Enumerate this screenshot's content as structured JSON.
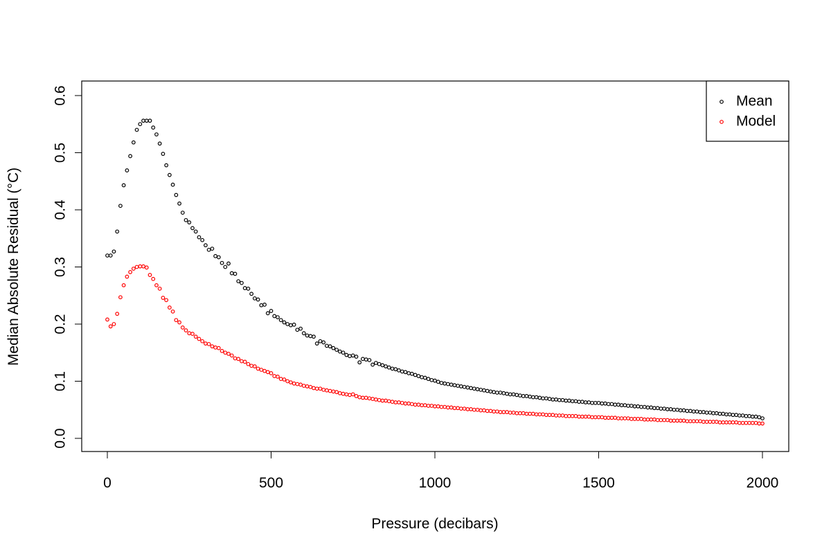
{
  "chart_data": {
    "type": "scatter",
    "x_label": "Pressure (decibars)",
    "y_label": "Median Absolute Residual (°C)",
    "x": [
      0,
      10,
      20,
      30,
      40,
      50,
      60,
      70,
      80,
      90,
      100,
      110,
      120,
      130,
      140,
      150,
      160,
      170,
      180,
      190,
      200,
      210,
      220,
      230,
      240,
      250,
      260,
      270,
      280,
      290,
      300,
      310,
      320,
      330,
      340,
      350,
      360,
      370,
      380,
      390,
      400,
      410,
      420,
      430,
      440,
      450,
      460,
      470,
      480,
      490,
      500,
      510,
      520,
      530,
      540,
      550,
      560,
      570,
      580,
      590,
      600,
      610,
      620,
      630,
      640,
      650,
      660,
      670,
      680,
      690,
      700,
      710,
      720,
      730,
      740,
      750,
      760,
      770,
      780,
      790,
      800,
      810,
      820,
      830,
      840,
      850,
      860,
      870,
      880,
      890,
      900,
      910,
      920,
      930,
      940,
      950,
      960,
      970,
      980,
      990,
      1000,
      1010,
      1020,
      1030,
      1040,
      1050,
      1060,
      1070,
      1080,
      1090,
      1100,
      1110,
      1120,
      1130,
      1140,
      1150,
      1160,
      1170,
      1180,
      1190,
      1200,
      1210,
      1220,
      1230,
      1240,
      1250,
      1260,
      1270,
      1280,
      1290,
      1300,
      1310,
      1320,
      1330,
      1340,
      1350,
      1360,
      1370,
      1380,
      1390,
      1400,
      1410,
      1420,
      1430,
      1440,
      1450,
      1460,
      1470,
      1480,
      1490,
      1500,
      1510,
      1520,
      1530,
      1540,
      1550,
      1560,
      1570,
      1580,
      1590,
      1600,
      1610,
      1620,
      1630,
      1640,
      1650,
      1660,
      1670,
      1680,
      1690,
      1700,
      1710,
      1720,
      1730,
      1740,
      1750,
      1760,
      1770,
      1780,
      1790,
      1800,
      1810,
      1820,
      1830,
      1840,
      1850,
      1860,
      1870,
      1880,
      1890,
      1900,
      1910,
      1920,
      1930,
      1940,
      1950,
      1960,
      1970,
      1980,
      1990,
      2000
    ],
    "series": [
      {
        "name": "Mean",
        "color": "#000000",
        "values": [
          0.32,
          0.32,
          0.327,
          0.362,
          0.407,
          0.443,
          0.469,
          0.494,
          0.518,
          0.54,
          0.55,
          0.556,
          0.556,
          0.556,
          0.544,
          0.532,
          0.516,
          0.498,
          0.478,
          0.461,
          0.444,
          0.426,
          0.411,
          0.395,
          0.382,
          0.378,
          0.368,
          0.362,
          0.352,
          0.347,
          0.338,
          0.33,
          0.332,
          0.319,
          0.317,
          0.307,
          0.3,
          0.306,
          0.289,
          0.288,
          0.275,
          0.272,
          0.263,
          0.262,
          0.253,
          0.245,
          0.243,
          0.233,
          0.234,
          0.219,
          0.223,
          0.214,
          0.212,
          0.207,
          0.203,
          0.2,
          0.198,
          0.199,
          0.19,
          0.192,
          0.184,
          0.18,
          0.179,
          0.178,
          0.166,
          0.17,
          0.168,
          0.162,
          0.161,
          0.158,
          0.155,
          0.152,
          0.15,
          0.146,
          0.144,
          0.145,
          0.143,
          0.133,
          0.139,
          0.138,
          0.137,
          0.129,
          0.132,
          0.13,
          0.128,
          0.126,
          0.124,
          0.122,
          0.121,
          0.119,
          0.117,
          0.116,
          0.114,
          0.113,
          0.111,
          0.109,
          0.107,
          0.106,
          0.104,
          0.102,
          0.101,
          0.099,
          0.097,
          0.096,
          0.095,
          0.094,
          0.093,
          0.092,
          0.091,
          0.09,
          0.089,
          0.088,
          0.087,
          0.086,
          0.085,
          0.084,
          0.083,
          0.082,
          0.081,
          0.08,
          0.08,
          0.079,
          0.078,
          0.077,
          0.077,
          0.076,
          0.075,
          0.074,
          0.074,
          0.073,
          0.072,
          0.072,
          0.071,
          0.07,
          0.07,
          0.069,
          0.068,
          0.068,
          0.067,
          0.067,
          0.066,
          0.066,
          0.065,
          0.065,
          0.064,
          0.064,
          0.063,
          0.063,
          0.062,
          0.062,
          0.062,
          0.061,
          0.061,
          0.06,
          0.06,
          0.059,
          0.059,
          0.058,
          0.058,
          0.057,
          0.057,
          0.056,
          0.056,
          0.055,
          0.055,
          0.054,
          0.054,
          0.053,
          0.053,
          0.052,
          0.052,
          0.051,
          0.051,
          0.05,
          0.05,
          0.049,
          0.049,
          0.048,
          0.048,
          0.047,
          0.047,
          0.046,
          0.046,
          0.045,
          0.045,
          0.044,
          0.044,
          0.043,
          0.043,
          0.042,
          0.042,
          0.041,
          0.041,
          0.04,
          0.04,
          0.039,
          0.039,
          0.038,
          0.038,
          0.037,
          0.035
        ]
      },
      {
        "name": "Model",
        "color": "#ff0000",
        "values": [
          0.208,
          0.196,
          0.2,
          0.218,
          0.247,
          0.268,
          0.283,
          0.291,
          0.297,
          0.3,
          0.301,
          0.301,
          0.299,
          0.286,
          0.279,
          0.268,
          0.262,
          0.246,
          0.242,
          0.229,
          0.222,
          0.207,
          0.203,
          0.194,
          0.189,
          0.184,
          0.183,
          0.178,
          0.174,
          0.17,
          0.166,
          0.165,
          0.161,
          0.159,
          0.158,
          0.153,
          0.15,
          0.148,
          0.145,
          0.14,
          0.139,
          0.135,
          0.134,
          0.13,
          0.127,
          0.126,
          0.122,
          0.12,
          0.118,
          0.116,
          0.114,
          0.109,
          0.108,
          0.104,
          0.103,
          0.1,
          0.098,
          0.096,
          0.095,
          0.094,
          0.092,
          0.091,
          0.09,
          0.088,
          0.087,
          0.087,
          0.085,
          0.084,
          0.083,
          0.082,
          0.081,
          0.079,
          0.078,
          0.077,
          0.076,
          0.077,
          0.074,
          0.072,
          0.071,
          0.071,
          0.07,
          0.069,
          0.068,
          0.067,
          0.066,
          0.066,
          0.065,
          0.064,
          0.063,
          0.063,
          0.062,
          0.061,
          0.061,
          0.06,
          0.059,
          0.059,
          0.058,
          0.058,
          0.057,
          0.057,
          0.056,
          0.056,
          0.055,
          0.055,
          0.054,
          0.054,
          0.053,
          0.053,
          0.052,
          0.052,
          0.051,
          0.051,
          0.05,
          0.05,
          0.049,
          0.049,
          0.048,
          0.048,
          0.047,
          0.047,
          0.046,
          0.046,
          0.046,
          0.045,
          0.045,
          0.044,
          0.044,
          0.044,
          0.043,
          0.043,
          0.043,
          0.042,
          0.042,
          0.042,
          0.041,
          0.041,
          0.041,
          0.04,
          0.04,
          0.04,
          0.039,
          0.039,
          0.039,
          0.039,
          0.038,
          0.038,
          0.038,
          0.038,
          0.037,
          0.037,
          0.037,
          0.037,
          0.036,
          0.036,
          0.036,
          0.036,
          0.035,
          0.035,
          0.035,
          0.035,
          0.034,
          0.034,
          0.034,
          0.034,
          0.033,
          0.033,
          0.033,
          0.033,
          0.032,
          0.032,
          0.032,
          0.032,
          0.031,
          0.031,
          0.031,
          0.031,
          0.031,
          0.03,
          0.03,
          0.03,
          0.03,
          0.03,
          0.029,
          0.029,
          0.029,
          0.029,
          0.029,
          0.028,
          0.028,
          0.028,
          0.028,
          0.028,
          0.028,
          0.027,
          0.027,
          0.027,
          0.027,
          0.027,
          0.027,
          0.026,
          0.026
        ]
      }
    ],
    "xlim": [
      0,
      2000
    ],
    "xticks": [
      0,
      500,
      1000,
      1500,
      2000
    ],
    "ylim": [
      0,
      0.6
    ],
    "yticks": [
      {
        "value": 0,
        "label": "0.0"
      },
      0.1,
      0.2,
      0.3,
      0.4,
      0.5,
      0.6
    ],
    "legend": "topright"
  }
}
